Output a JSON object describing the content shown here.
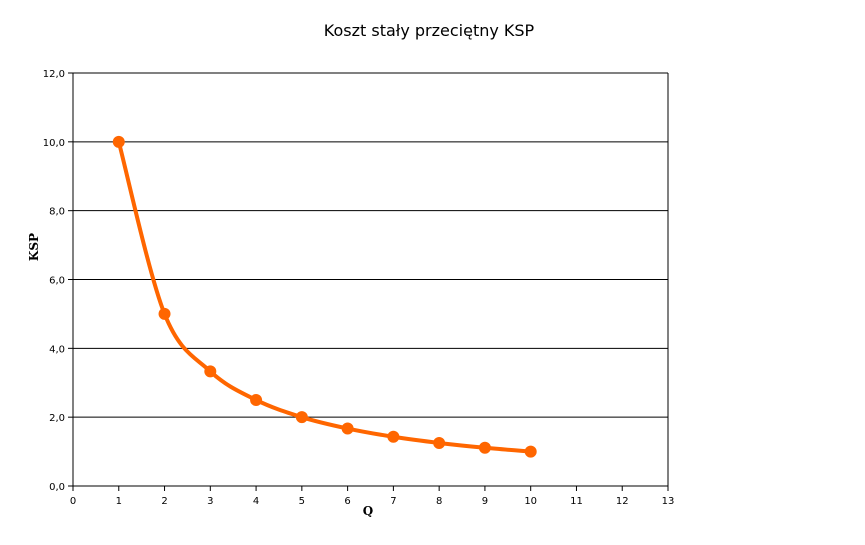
{
  "chart_data": {
    "type": "line",
    "title": "Koszt stały przeciętny KSP",
    "xlabel": "Q",
    "ylabel": "KSP",
    "xlim": [
      0,
      13
    ],
    "ylim": [
      0,
      12
    ],
    "x_ticks": [
      "0",
      "1",
      "2",
      "3",
      "4",
      "5",
      "6",
      "7",
      "8",
      "9",
      "10",
      "11",
      "12",
      "13"
    ],
    "y_ticks": [
      "0,0",
      "2,0",
      "4,0",
      "6,0",
      "8,0",
      "10,0",
      "12,0"
    ],
    "grid": "horizontal",
    "legend": "none",
    "series": [
      {
        "x": [
          1,
          2,
          3,
          4,
          5,
          6,
          7,
          8,
          9,
          10
        ],
        "values": [
          10.0,
          5.0,
          3.33,
          2.5,
          2.0,
          1.67,
          1.43,
          1.25,
          1.11,
          1.0
        ],
        "color": "#ff6600",
        "smooth": true,
        "markers": true
      }
    ]
  }
}
